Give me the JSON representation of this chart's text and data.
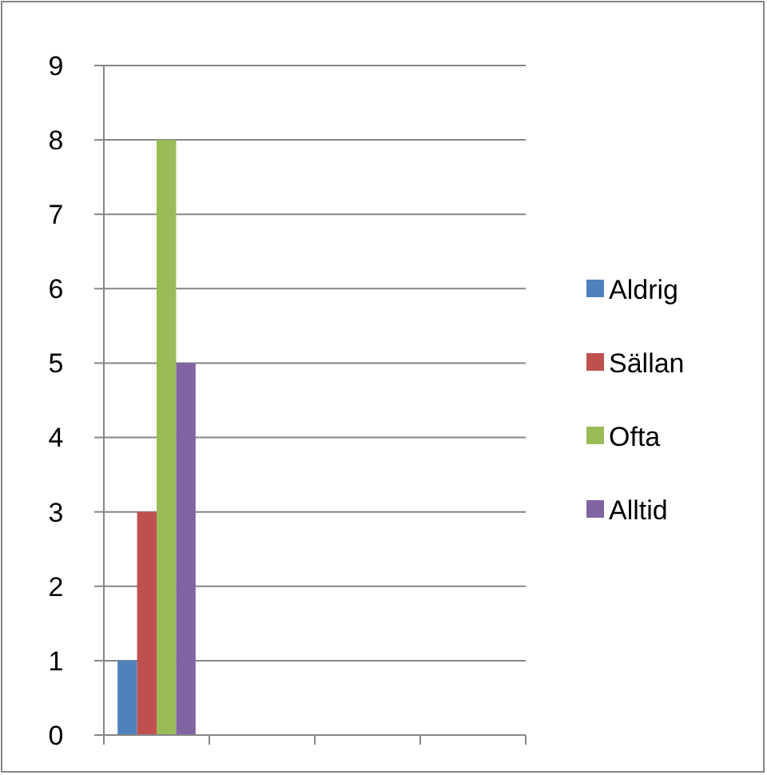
{
  "chart_data": {
    "type": "bar",
    "categories": [
      null,
      null,
      null,
      null
    ],
    "series": [
      {
        "name": "Aldrig",
        "color": "#4f81bd",
        "values": [
          1,
          null,
          null,
          null
        ]
      },
      {
        "name": "Sällan",
        "color": "#c0504d",
        "values": [
          3,
          null,
          null,
          null
        ]
      },
      {
        "name": "Ofta",
        "color": "#9bbb59",
        "values": [
          8,
          null,
          null,
          null
        ]
      },
      {
        "name": "Alltid",
        "color": "#8064a2",
        "values": [
          5,
          null,
          null,
          null
        ]
      }
    ],
    "ylim": [
      0,
      9
    ],
    "yticks": [
      0,
      1,
      2,
      3,
      4,
      5,
      6,
      7,
      8,
      9
    ],
    "grid": "y",
    "legend": "right"
  }
}
